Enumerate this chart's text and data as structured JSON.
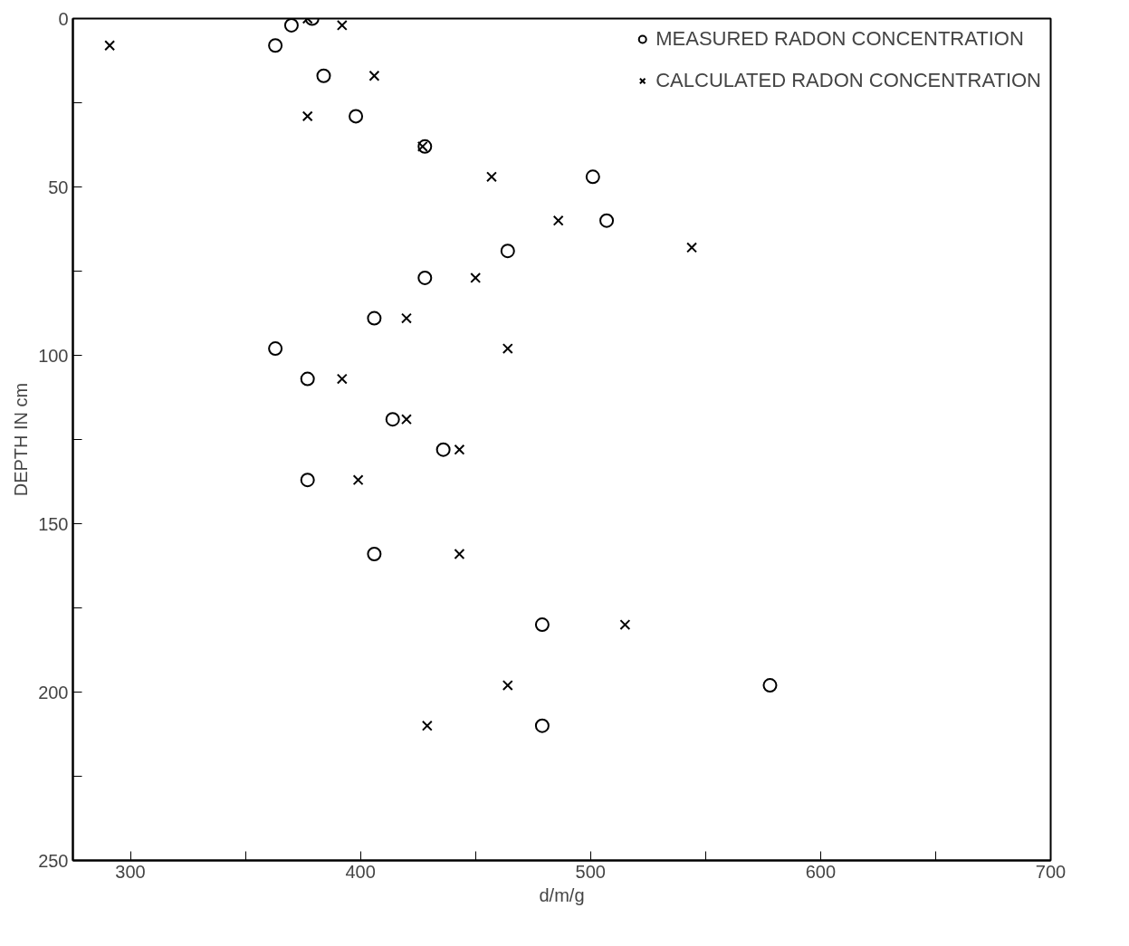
{
  "chart_data": {
    "type": "scatter",
    "xlabel": "d/m/g",
    "ylabel": "DEPTH IN cm",
    "xlim": [
      275,
      700
    ],
    "ylim": [
      250,
      0
    ],
    "xticks": [
      300,
      {
        "value": 350,
        "label": null
      },
      400,
      {
        "value": 450,
        "label": null
      },
      500,
      {
        "value": 550,
        "label": null
      },
      600,
      {
        "value": 650,
        "label": null
      },
      700
    ],
    "yticks": [
      0,
      {
        "value": 25,
        "label": null
      },
      50,
      {
        "value": 75,
        "label": null
      },
      100,
      {
        "value": 125,
        "label": null
      },
      150,
      {
        "value": 175,
        "label": null
      },
      200,
      {
        "value": 225,
        "label": null
      },
      250
    ],
    "grid": false,
    "legend": "top right",
    "series": [
      {
        "name": "MEASURED RADON CONCENTRATION",
        "color": "#000000",
        "marker": "circle",
        "x": [
          379,
          370,
          363,
          384,
          398,
          428,
          501,
          507,
          464,
          428,
          406,
          363,
          377,
          414,
          436,
          377,
          406,
          479,
          578,
          479
        ],
        "values": [
          0,
          2,
          8,
          17,
          29,
          38,
          47,
          60,
          69,
          77,
          89,
          98,
          107,
          119,
          128,
          137,
          159,
          180,
          198,
          210
        ]
      },
      {
        "name": "CALCULATED RADON CONCENTRATION",
        "color": "#000000",
        "marker": "cross",
        "x": [
          377,
          392,
          291,
          406,
          377,
          427,
          457,
          486,
          544,
          450,
          420,
          464,
          392,
          420,
          443,
          399,
          443,
          515,
          464,
          429
        ],
        "values": [
          0,
          2,
          8,
          17,
          29,
          38,
          47,
          60,
          68,
          77,
          89,
          98,
          107,
          119,
          128,
          137,
          159,
          180,
          198,
          210
        ]
      }
    ]
  }
}
